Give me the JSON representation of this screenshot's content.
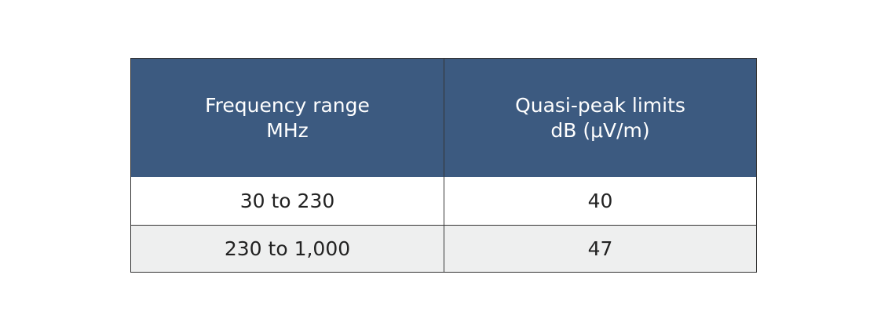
{
  "table": {
    "header": [
      [
        "Frequency range",
        "MHz"
      ],
      [
        "Quasi-peak limits",
        "dB (μV/m)"
      ]
    ],
    "rows": [
      [
        "30 to 230",
        "40"
      ],
      [
        "230 to 1,000",
        "47"
      ]
    ]
  }
}
